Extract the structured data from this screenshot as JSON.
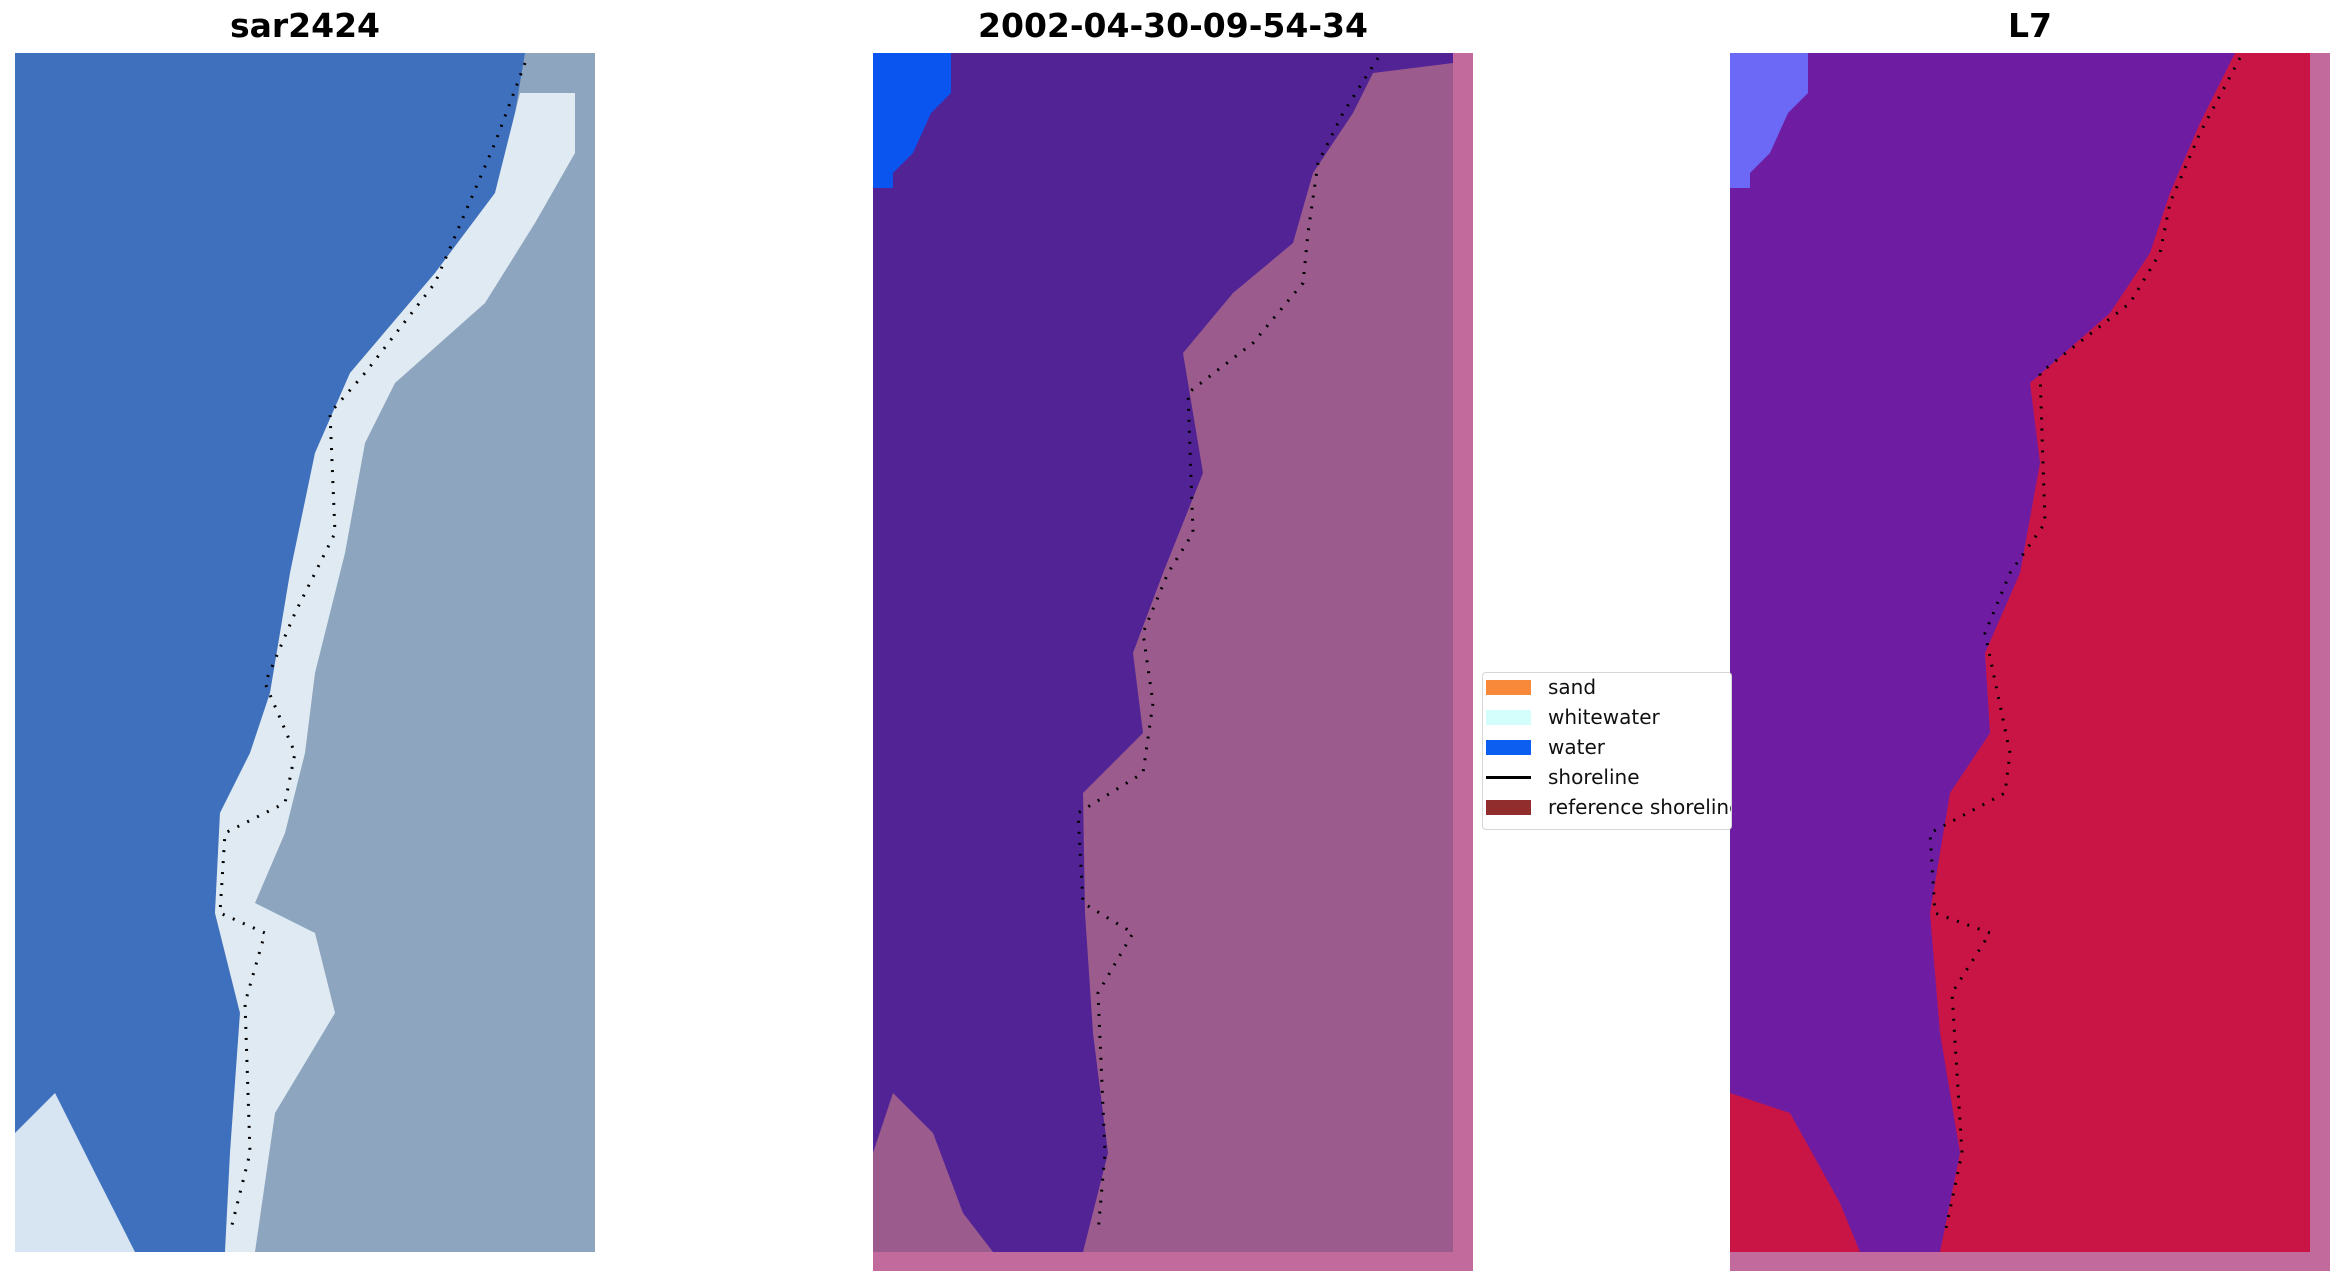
{
  "panels": [
    {
      "title": "sar2424",
      "colors": {
        "water": "#3f70bd",
        "sand": "#8ea5bf",
        "shore": "#e8f2f7"
      }
    },
    {
      "title": "2002-04-30-09-54-34",
      "colors": {
        "water": "#522394",
        "land": "#9b5b8d",
        "bright": "#0a55f0",
        "edge": "#c26a9c"
      }
    },
    {
      "title": "L7",
      "colors": {
        "water": "#6e1da3",
        "land": "#c81545",
        "bright": "#6b69f5",
        "edge": "#c26a9c"
      }
    }
  ],
  "legend": [
    {
      "label": "sand",
      "color": "#f9893a",
      "kind": "patch"
    },
    {
      "label": "whitewater",
      "color": "#d3fefc",
      "kind": "patch"
    },
    {
      "label": "water",
      "color": "#0b5ef0",
      "kind": "patch"
    },
    {
      "label": "shoreline",
      "color": "#000000",
      "kind": "line"
    },
    {
      "label": "reference shoreline",
      "color": "#922d2d",
      "kind": "patch"
    }
  ]
}
